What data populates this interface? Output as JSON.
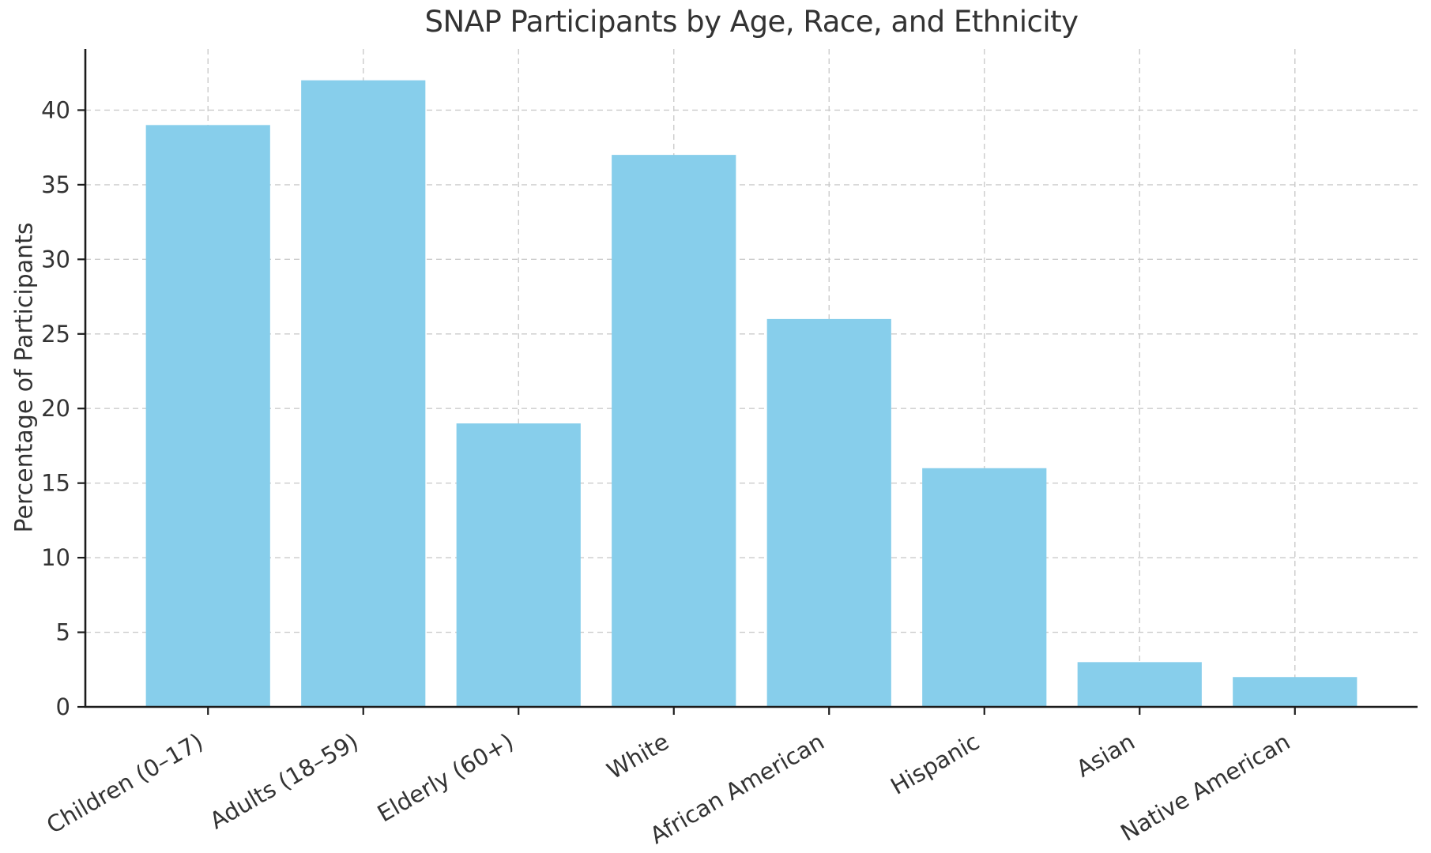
{
  "chart_data": {
    "type": "bar",
    "title": "SNAP Participants by Age, Race, and Ethnicity",
    "categories": [
      "Children (0–17)",
      "Adults (18–59)",
      "Elderly (60+)",
      "White",
      "African American",
      "Hispanic",
      "Asian",
      "Native American"
    ],
    "values": [
      39,
      42,
      19,
      37,
      26,
      16,
      3,
      2
    ],
    "xlabel": "",
    "ylabel": "Percentage of Participants",
    "yticks": [
      0,
      5,
      10,
      15,
      20,
      25,
      30,
      35,
      40
    ],
    "ylim": [
      0,
      44.1
    ],
    "xlim": [
      -0.79,
      7.79
    ],
    "bar_width": 0.8,
    "bar_color": "#87CEEB",
    "grid": true,
    "grid_style": "dashed",
    "grid_color": "#cbcbcb",
    "axis_color": "#1c1c1c",
    "text_color": "#333333",
    "x_tick_rotation": 30,
    "legend_position": "none",
    "visible_spines": [
      "left",
      "bottom"
    ]
  }
}
